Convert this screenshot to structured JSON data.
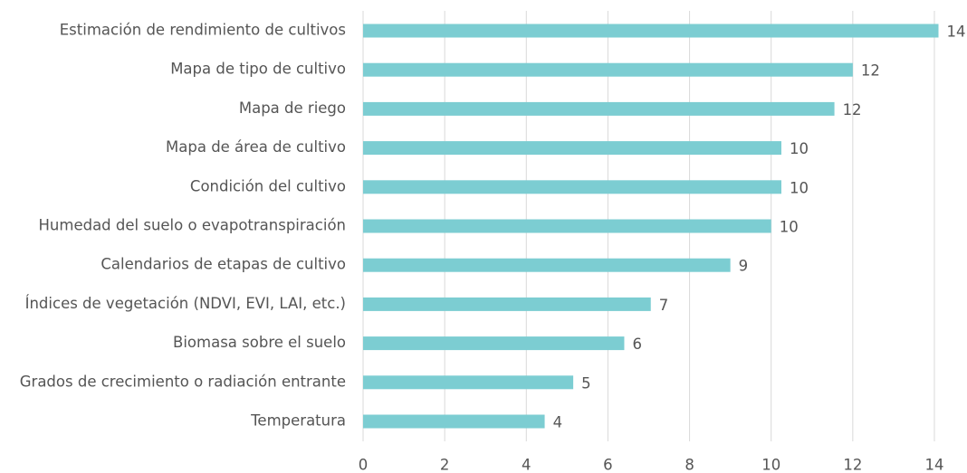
{
  "chart_data": {
    "type": "barh",
    "categories": [
      "Estimación de rendimiento de cultivos",
      "Mapa de tipo de cultivo",
      "Mapa de riego",
      "Mapa de área de cultivo",
      "Condición del cultivo",
      "Humedad del suelo o evapotranspiración",
      "Calendarios de etapas de cultivo",
      "Índices de vegetación (NDVI, EVI, LAI, etc.)",
      "Biomasa sobre el suelo",
      "Grados de crecimiento o radiación entrante",
      "Temperatura"
    ],
    "values": [
      14.1,
      12.0,
      11.55,
      10.25,
      10.25,
      10.0,
      9.0,
      7.05,
      6.4,
      5.15,
      4.45
    ],
    "value_labels": [
      "14",
      "12",
      "12",
      "10",
      "10",
      "10",
      "9",
      "7",
      "6",
      "5",
      "4"
    ],
    "color": "#7ccdd2",
    "xlim": [
      0,
      14
    ],
    "xticks": [
      0,
      2,
      4,
      6,
      8,
      10,
      12,
      14
    ],
    "grid": true
  }
}
